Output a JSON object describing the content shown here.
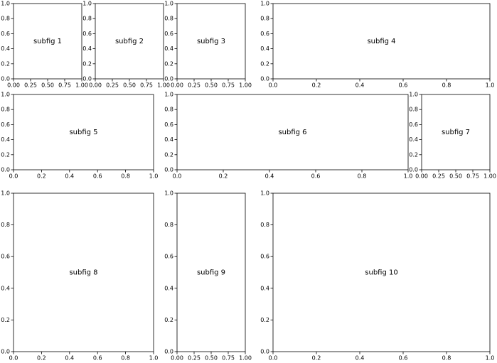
{
  "chart_data": [
    {
      "type": "text",
      "annotation": "subfig 1",
      "xlim": [
        0,
        1
      ],
      "ylim": [
        0,
        1
      ],
      "xticks": [
        {
          "value": 0,
          "label": "0.00"
        },
        {
          "value": 0.25,
          "label": "0.25"
        },
        {
          "value": 0.5,
          "label": "0.50"
        },
        {
          "value": 0.75,
          "label": "0.75"
        },
        {
          "value": 1,
          "label": "1.00"
        }
      ],
      "yticks": [
        {
          "value": 0,
          "label": "0.0"
        },
        {
          "value": 0.2,
          "label": "0.2"
        },
        {
          "value": 0.4,
          "label": "0.4"
        },
        {
          "value": 0.6,
          "label": "0.6"
        },
        {
          "value": 0.8,
          "label": "0.8"
        },
        {
          "value": 1,
          "label": "1.0"
        }
      ]
    },
    {
      "type": "text",
      "annotation": "subfig 2",
      "xlim": [
        0,
        1
      ],
      "ylim": [
        0,
        1
      ],
      "xticks": [
        {
          "value": 0,
          "label": "0.00"
        },
        {
          "value": 0.25,
          "label": "0.25"
        },
        {
          "value": 0.5,
          "label": "0.50"
        },
        {
          "value": 0.75,
          "label": "0.75"
        },
        {
          "value": 1,
          "label": "1.00"
        }
      ],
      "yticks": [
        {
          "value": 0,
          "label": "0.0"
        },
        {
          "value": 0.2,
          "label": "0.2"
        },
        {
          "value": 0.4,
          "label": "0.4"
        },
        {
          "value": 0.6,
          "label": "0.6"
        },
        {
          "value": 0.8,
          "label": "0.8"
        },
        {
          "value": 1,
          "label": "1.0"
        }
      ]
    },
    {
      "type": "text",
      "annotation": "subfig 3",
      "xlim": [
        0,
        1
      ],
      "ylim": [
        0,
        1
      ],
      "xticks": [
        {
          "value": 0,
          "label": "0.00"
        },
        {
          "value": 0.25,
          "label": "0.25"
        },
        {
          "value": 0.5,
          "label": "0.50"
        },
        {
          "value": 0.75,
          "label": "0.75"
        },
        {
          "value": 1,
          "label": "1.00"
        }
      ],
      "yticks": [
        {
          "value": 0,
          "label": "0.0"
        },
        {
          "value": 0.2,
          "label": "0.2"
        },
        {
          "value": 0.4,
          "label": "0.4"
        },
        {
          "value": 0.6,
          "label": "0.6"
        },
        {
          "value": 0.8,
          "label": "0.8"
        },
        {
          "value": 1,
          "label": "1.0"
        }
      ]
    },
    {
      "type": "text",
      "annotation": "subfig 4",
      "xlim": [
        0,
        1
      ],
      "ylim": [
        0,
        1
      ],
      "xticks": [
        {
          "value": 0,
          "label": "0.0"
        },
        {
          "value": 0.2,
          "label": "0.2"
        },
        {
          "value": 0.4,
          "label": "0.4"
        },
        {
          "value": 0.6,
          "label": "0.6"
        },
        {
          "value": 0.8,
          "label": "0.8"
        },
        {
          "value": 1,
          "label": "1.0"
        }
      ],
      "yticks": [
        {
          "value": 0,
          "label": "0.0"
        },
        {
          "value": 0.2,
          "label": "0.2"
        },
        {
          "value": 0.4,
          "label": "0.4"
        },
        {
          "value": 0.6,
          "label": "0.6"
        },
        {
          "value": 0.8,
          "label": "0.8"
        },
        {
          "value": 1,
          "label": "1.0"
        }
      ]
    },
    {
      "type": "text",
      "annotation": "subfig 5",
      "xlim": [
        0,
        1
      ],
      "ylim": [
        0,
        1
      ],
      "xticks": [
        {
          "value": 0,
          "label": "0.0"
        },
        {
          "value": 0.2,
          "label": "0.2"
        },
        {
          "value": 0.4,
          "label": "0.4"
        },
        {
          "value": 0.6,
          "label": "0.6"
        },
        {
          "value": 0.8,
          "label": "0.8"
        },
        {
          "value": 1,
          "label": "1.0"
        }
      ],
      "yticks": [
        {
          "value": 0,
          "label": "0.0"
        },
        {
          "value": 0.2,
          "label": "0.2"
        },
        {
          "value": 0.4,
          "label": "0.4"
        },
        {
          "value": 0.6,
          "label": "0.6"
        },
        {
          "value": 0.8,
          "label": "0.8"
        },
        {
          "value": 1,
          "label": "1.0"
        }
      ]
    },
    {
      "type": "text",
      "annotation": "subfig 6",
      "xlim": [
        0,
        1
      ],
      "ylim": [
        0,
        1
      ],
      "xticks": [
        {
          "value": 0,
          "label": "0.0"
        },
        {
          "value": 0.2,
          "label": "0.2"
        },
        {
          "value": 0.4,
          "label": "0.4"
        },
        {
          "value": 0.6,
          "label": "0.6"
        },
        {
          "value": 0.8,
          "label": "0.8"
        },
        {
          "value": 1,
          "label": "1.0"
        }
      ],
      "yticks": [
        {
          "value": 0,
          "label": "0.0"
        },
        {
          "value": 0.2,
          "label": "0.2"
        },
        {
          "value": 0.4,
          "label": "0.4"
        },
        {
          "value": 0.6,
          "label": "0.6"
        },
        {
          "value": 0.8,
          "label": "0.8"
        },
        {
          "value": 1,
          "label": "1.0"
        }
      ]
    },
    {
      "type": "text",
      "annotation": "subfig 7",
      "xlim": [
        0,
        1
      ],
      "ylim": [
        0,
        1
      ],
      "xticks": [
        {
          "value": 0,
          "label": "0.00"
        },
        {
          "value": 0.25,
          "label": "0.25"
        },
        {
          "value": 0.5,
          "label": "0.50"
        },
        {
          "value": 0.75,
          "label": "0.75"
        },
        {
          "value": 1,
          "label": "1.00"
        }
      ],
      "yticks": [
        {
          "value": 0,
          "label": "0.0"
        },
        {
          "value": 0.2,
          "label": "0.2"
        },
        {
          "value": 0.4,
          "label": "0.4"
        },
        {
          "value": 0.6,
          "label": "0.6"
        },
        {
          "value": 0.8,
          "label": "0.8"
        },
        {
          "value": 1,
          "label": "1.0"
        }
      ]
    },
    {
      "type": "text",
      "annotation": "subfig 8",
      "xlim": [
        0,
        1
      ],
      "ylim": [
        0,
        1
      ],
      "xticks": [
        {
          "value": 0,
          "label": "0.0"
        },
        {
          "value": 0.2,
          "label": "0.2"
        },
        {
          "value": 0.4,
          "label": "0.4"
        },
        {
          "value": 0.6,
          "label": "0.6"
        },
        {
          "value": 0.8,
          "label": "0.8"
        },
        {
          "value": 1,
          "label": "1.0"
        }
      ],
      "yticks": [
        {
          "value": 0,
          "label": "0.0"
        },
        {
          "value": 0.2,
          "label": "0.2"
        },
        {
          "value": 0.4,
          "label": "0.4"
        },
        {
          "value": 0.6,
          "label": "0.6"
        },
        {
          "value": 0.8,
          "label": "0.8"
        },
        {
          "value": 1,
          "label": "1.0"
        }
      ]
    },
    {
      "type": "text",
      "annotation": "subfig 9",
      "xlim": [
        0,
        1
      ],
      "ylim": [
        0,
        1
      ],
      "xticks": [
        {
          "value": 0,
          "label": "0.00"
        },
        {
          "value": 0.25,
          "label": "0.25"
        },
        {
          "value": 0.5,
          "label": "0.50"
        },
        {
          "value": 0.75,
          "label": "0.75"
        },
        {
          "value": 1,
          "label": "1.00"
        }
      ],
      "yticks": [
        {
          "value": 0,
          "label": "0.0"
        },
        {
          "value": 0.2,
          "label": "0.2"
        },
        {
          "value": 0.4,
          "label": "0.4"
        },
        {
          "value": 0.6,
          "label": "0.6"
        },
        {
          "value": 0.8,
          "label": "0.8"
        },
        {
          "value": 1,
          "label": "1.0"
        }
      ]
    },
    {
      "type": "text",
      "annotation": "subfig 10",
      "xlim": [
        0,
        1
      ],
      "ylim": [
        0,
        1
      ],
      "xticks": [
        {
          "value": 0,
          "label": "0.0"
        },
        {
          "value": 0.2,
          "label": "0.2"
        },
        {
          "value": 0.4,
          "label": "0.4"
        },
        {
          "value": 0.6,
          "label": "0.6"
        },
        {
          "value": 0.8,
          "label": "0.8"
        },
        {
          "value": 1,
          "label": "1.0"
        }
      ],
      "yticks": [
        {
          "value": 0,
          "label": "0.0"
        },
        {
          "value": 0.2,
          "label": "0.2"
        },
        {
          "value": 0.4,
          "label": "0.4"
        },
        {
          "value": 0.6,
          "label": "0.6"
        },
        {
          "value": 0.8,
          "label": "0.8"
        },
        {
          "value": 1,
          "label": "1.0"
        }
      ]
    }
  ]
}
